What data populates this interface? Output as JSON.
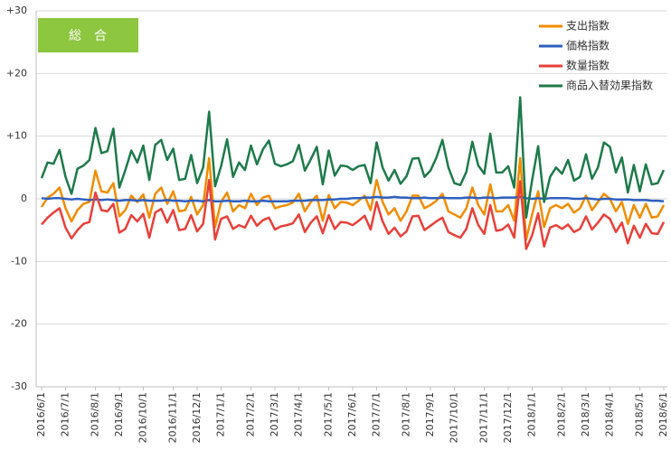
{
  "chart_data": {
    "type": "line",
    "title": "総　合",
    "categories": [
      "2016/6/1",
      null,
      null,
      null,
      "2016/7/1",
      null,
      null,
      null,
      null,
      "2016/8/1",
      null,
      null,
      null,
      "2016/9/1",
      null,
      null,
      null,
      "2016/10/1",
      null,
      null,
      null,
      null,
      "2016/11/1",
      null,
      null,
      null,
      "2016/12/1",
      null,
      null,
      null,
      "2017/1/1",
      null,
      null,
      null,
      null,
      "2017/2/1",
      null,
      null,
      null,
      "2017/3/1",
      null,
      null,
      null,
      "2017/4/1",
      null,
      null,
      null,
      null,
      "2017/5/1",
      null,
      null,
      null,
      "2017/6/1",
      null,
      null,
      null,
      "2017/7/1",
      null,
      null,
      null,
      null,
      "2017/8/1",
      null,
      null,
      null,
      "2017/9/1",
      null,
      null,
      null,
      "2017/10/1",
      null,
      null,
      null,
      null,
      "2017/11/1",
      null,
      null,
      null,
      "2017/12/1",
      null,
      null,
      null,
      "2018/1/1",
      null,
      null,
      null,
      null,
      "2018/2/1",
      null,
      null,
      null,
      "2018/3/1",
      null,
      null,
      null,
      "2018/4/1",
      null,
      null,
      null,
      null,
      "2018/5/1",
      null,
      null,
      null,
      "2018/6/1"
    ],
    "series": [
      {
        "name": "支出指数",
        "color": "#f08c00",
        "values": [
          -1.3,
          0.2,
          0.8,
          1.8,
          -1.5,
          -3.6,
          -1.8,
          -0.8,
          -0.5,
          4.5,
          1.2,
          1.0,
          2.5,
          -2.8,
          -1.8,
          0.5,
          -0.5,
          0.7,
          -3.0,
          0.8,
          1.8,
          -0.8,
          1.2,
          -2.0,
          -1.8,
          0.3,
          -2.5,
          -1.0,
          6.5,
          -4.5,
          -0.5,
          1.0,
          -2.0,
          -1.0,
          -1.5,
          0.8,
          -1.0,
          0.2,
          0.5,
          -1.5,
          -1.2,
          -1.0,
          -0.6,
          0.8,
          -2.0,
          -0.5,
          0.5,
          -3.5,
          0.6,
          -1.5,
          -0.5,
          -0.6,
          -1.0,
          -0.3,
          0.5,
          -1.8,
          3.0,
          -0.5,
          -2.5,
          -1.5,
          -3.5,
          -2.0,
          0.5,
          0.5,
          -1.5,
          -1.0,
          -0.3,
          0.8,
          -2.0,
          -2.5,
          -3.0,
          -1.5,
          1.8,
          -1.0,
          -2.5,
          2.3,
          -2.0,
          -2.0,
          -1.0,
          -3.5,
          6.5,
          -6.5,
          -2.5,
          1.2,
          -4.5,
          -1.5,
          -1.0,
          -1.5,
          -0.8,
          -2.2,
          -1.5,
          0.5,
          -1.8,
          -0.5,
          0.8,
          0.0,
          -2.0,
          -0.5,
          -4.0,
          -1.0,
          -3.0,
          -0.8,
          -3.0,
          -2.8,
          -1.0
        ]
      },
      {
        "name": "価格指数",
        "color": "#2e5fbf",
        "values": [
          0.1,
          0.0,
          0.1,
          0.1,
          0.0,
          -0.1,
          0.0,
          -0.1,
          -0.2,
          -0.1,
          -0.2,
          -0.1,
          -0.2,
          -0.3,
          -0.2,
          -0.2,
          -0.3,
          -0.2,
          -0.3,
          -0.3,
          -0.3,
          -0.2,
          -0.3,
          -0.3,
          -0.4,
          -0.3,
          -0.3,
          -0.4,
          -0.2,
          -0.4,
          -0.4,
          -0.3,
          -0.4,
          -0.4,
          -0.3,
          -0.4,
          -0.4,
          -0.3,
          -0.4,
          -0.4,
          -0.4,
          -0.4,
          -0.3,
          -0.3,
          -0.3,
          -0.2,
          -0.2,
          -0.2,
          -0.1,
          -0.1,
          0.0,
          0.0,
          0.1,
          0.1,
          0.2,
          0.2,
          0.3,
          0.2,
          0.2,
          0.3,
          0.2,
          0.2,
          0.1,
          0.1,
          0.2,
          0.1,
          0.1,
          0.2,
          0.1,
          0.1,
          0.1,
          0.2,
          0.2,
          0.1,
          0.2,
          0.2,
          0.1,
          0.2,
          0.2,
          0.2,
          0.3,
          0.1,
          0.0,
          0.1,
          0.0,
          0.1,
          0.1,
          0.1,
          0.1,
          0.0,
          0.0,
          0.1,
          0.0,
          -0.1,
          0.0,
          0.0,
          -0.1,
          -0.1,
          -0.1,
          -0.2,
          -0.2,
          -0.2,
          -0.3,
          -0.3,
          -0.4
        ]
      },
      {
        "name": "数量指数",
        "color": "#e8403a",
        "values": [
          -4.1,
          -3.0,
          -2.2,
          -1.5,
          -4.6,
          -6.3,
          -5.0,
          -4.0,
          -3.7,
          1.0,
          -1.8,
          -2.0,
          -0.8,
          -5.4,
          -4.8,
          -2.6,
          -3.6,
          -2.4,
          -6.2,
          -2.2,
          -1.6,
          -3.8,
          -1.8,
          -5.0,
          -4.8,
          -2.6,
          -5.2,
          -4.0,
          3.0,
          -6.5,
          -3.2,
          -2.8,
          -4.8,
          -4.2,
          -4.6,
          -2.7,
          -4.3,
          -3.4,
          -3.0,
          -4.9,
          -4.4,
          -4.2,
          -3.9,
          -2.5,
          -5.3,
          -3.8,
          -2.8,
          -5.5,
          -2.6,
          -4.8,
          -3.7,
          -3.8,
          -4.2,
          -3.5,
          -2.7,
          -4.9,
          -0.5,
          -3.6,
          -5.6,
          -4.6,
          -6.0,
          -5.2,
          -2.8,
          -2.7,
          -5.0,
          -4.3,
          -3.6,
          -3.0,
          -5.3,
          -5.8,
          -6.2,
          -4.8,
          -1.5,
          -4.2,
          -5.6,
          -1.0,
          -5.1,
          -4.9,
          -4.1,
          -6.2,
          2.8,
          -8.0,
          -5.8,
          -2.3,
          -7.6,
          -4.6,
          -4.2,
          -4.8,
          -4.1,
          -5.3,
          -4.8,
          -2.8,
          -4.9,
          -3.8,
          -2.5,
          -3.2,
          -5.3,
          -3.8,
          -7.1,
          -4.3,
          -6.2,
          -4.0,
          -5.5,
          -5.6,
          -3.7
        ]
      },
      {
        "name": "商品入替効果指数",
        "color": "#1e7a4a",
        "values": [
          3.3,
          5.8,
          5.6,
          7.8,
          3.5,
          0.8,
          4.8,
          5.3,
          6.2,
          11.3,
          7.3,
          7.6,
          11.2,
          1.8,
          4.6,
          7.7,
          5.8,
          8.5,
          3.0,
          8.6,
          9.4,
          6.2,
          8.0,
          3.0,
          3.2,
          7.0,
          2.5,
          5.0,
          13.9,
          2.0,
          5.2,
          9.5,
          3.5,
          5.8,
          4.6,
          8.5,
          5.5,
          7.9,
          9.3,
          5.6,
          5.2,
          5.5,
          6.0,
          8.6,
          4.5,
          6.3,
          8.3,
          2.3,
          7.7,
          3.7,
          5.3,
          5.2,
          4.6,
          5.2,
          5.4,
          2.5,
          9.0,
          5.0,
          2.9,
          4.6,
          2.4,
          3.6,
          6.4,
          6.5,
          3.5,
          4.5,
          6.6,
          9.4,
          5.0,
          2.5,
          2.2,
          4.3,
          9.1,
          5.3,
          4.0,
          10.4,
          4.2,
          4.2,
          5.2,
          1.8,
          16.2,
          -3.0,
          3.0,
          8.4,
          -0.5,
          3.5,
          5.0,
          4.0,
          6.2,
          2.9,
          3.5,
          7.1,
          3.2,
          5.0,
          9.0,
          8.3,
          4.2,
          6.6,
          1.0,
          5.4,
          1.2,
          5.5,
          2.3,
          2.5,
          4.6
        ]
      }
    ],
    "ylim": [
      -30,
      30
    ],
    "yticks": [
      {
        "value": 30,
        "label": "+30"
      },
      {
        "value": 20,
        "label": "+20"
      },
      {
        "value": 10,
        "label": "+10"
      },
      0,
      -10,
      -20,
      -30
    ],
    "grid": true,
    "legend": "top-right",
    "title_color": "#8dc63f"
  }
}
